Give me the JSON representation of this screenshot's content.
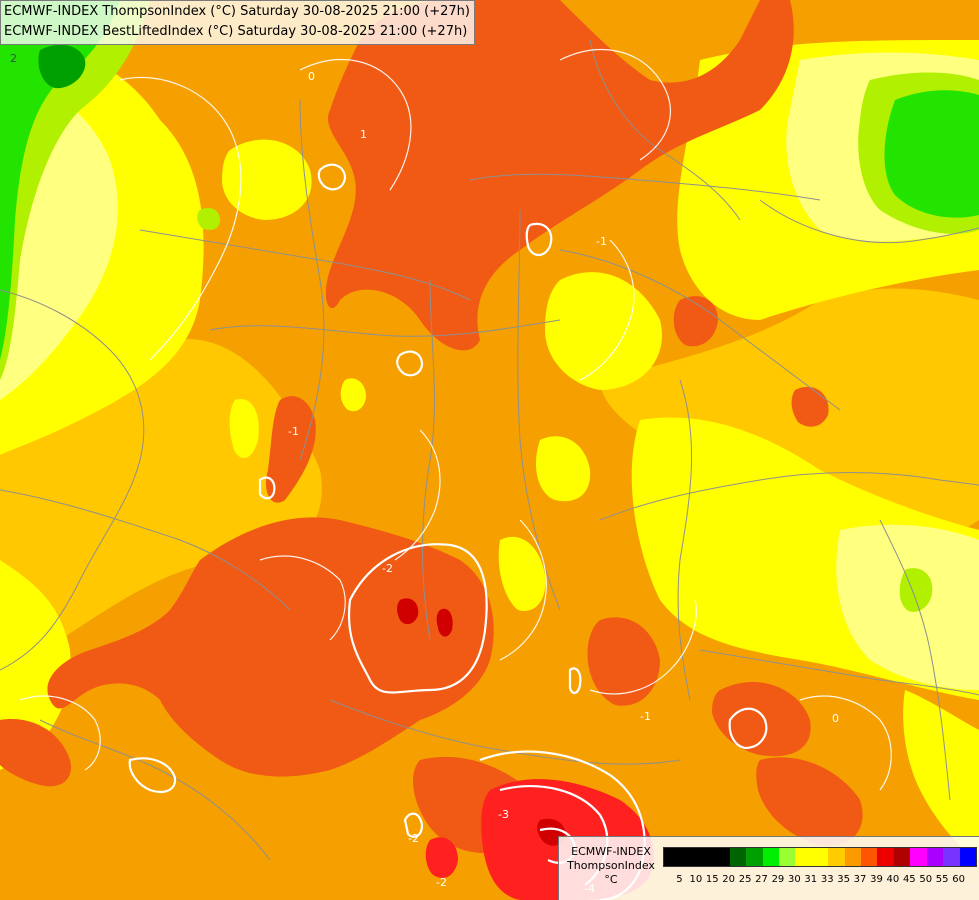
{
  "title": {
    "line1": "ECMWF-INDEX ThompsonIndex (°C) Saturday 30-08-2025 21:00 (+27h)",
    "line2": "ECMWF-INDEX BestLiftedIndex (°C) Saturday 30-08-2025 21:00 (+27h)"
  },
  "legend": {
    "model": "ECMWF-INDEX",
    "parameter": "ThompsonIndex",
    "unit": "°C",
    "ticks": [
      "5",
      "10",
      "15",
      "20",
      "25",
      "27",
      "29",
      "30",
      "31",
      "33",
      "35",
      "37",
      "39",
      "40",
      "45",
      "50",
      "55",
      "60"
    ],
    "colors": [
      "#000000",
      "#000000",
      "#000000",
      "#000000",
      "#006400",
      "#00a000",
      "#00ee00",
      "#99ff33",
      "#ffff00",
      "#ffff00",
      "#ffcc00",
      "#ff9900",
      "#ff5500",
      "#ee0000",
      "#b00000",
      "#ff00ff",
      "#aa00ff",
      "#7733ff",
      "#0000ff"
    ]
  },
  "contour_labels": [
    "2",
    "1",
    "0",
    "-1",
    "-2",
    "-1",
    "-2",
    "-3",
    "-4",
    "-2",
    "-1",
    "0"
  ],
  "colors": {
    "green": "#22e400",
    "lime": "#b0f000",
    "yellow": "#ffff00",
    "pale_yellow": "#ffff80",
    "light_orange": "#ffc800",
    "orange": "#f5a000",
    "dark_orange": "#f05a14",
    "red": "#ff2020",
    "dark_red": "#d00000"
  }
}
